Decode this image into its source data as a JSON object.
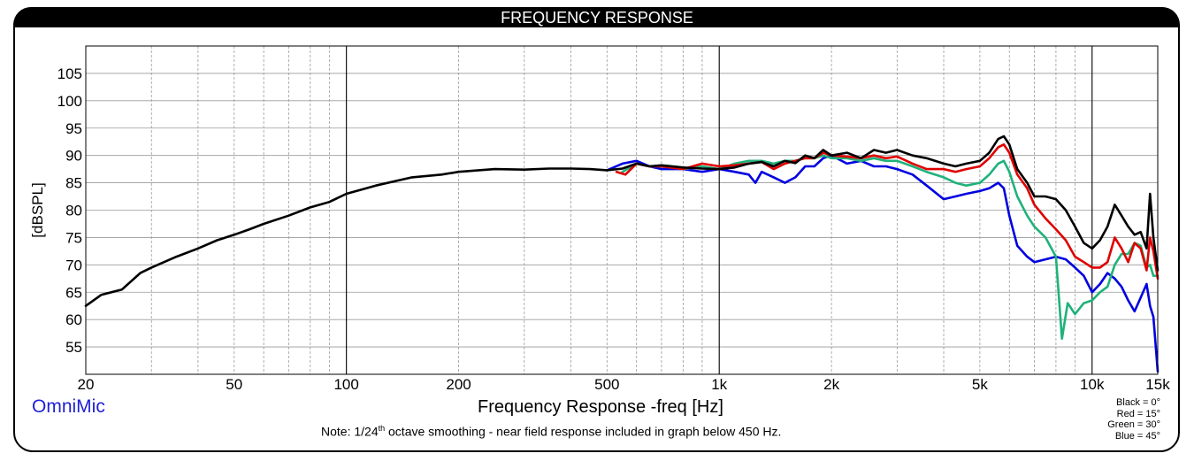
{
  "title": "FREQUENCY RESPONSE",
  "brand": "OmniMic",
  "note": {
    "prefix": "Note: 1/24",
    "sup": "th",
    "suffix": " octave smoothing - near field response included in graph below 450 Hz."
  },
  "legend": [
    "Black = 0°",
    "Red = 15°",
    "Green = 30°",
    "Blue = 45°"
  ],
  "chart_data": {
    "type": "line",
    "xlabel": "Frequency Response -freq [Hz]",
    "ylabel": "[dBSPL]",
    "xscale": "log",
    "xlim": [
      20,
      15000
    ],
    "ylim": [
      50,
      110
    ],
    "grid": true,
    "x_ticks": [
      20,
      50,
      100,
      200,
      500,
      1000,
      2000,
      5000,
      10000,
      15000
    ],
    "x_tick_labels": [
      "20",
      "50",
      "100",
      "200",
      "500",
      "1k",
      "2k",
      "5k",
      "10k",
      "15k"
    ],
    "y_ticks": [
      55,
      60,
      65,
      70,
      75,
      80,
      85,
      90,
      95,
      100,
      105
    ],
    "y_tick_labels": [
      "55",
      "60",
      "65",
      "70",
      "75",
      "80",
      "85",
      "90",
      "95",
      "100",
      "105"
    ],
    "series": [
      {
        "name": "Black = 0°",
        "color": "#000000",
        "x": [
          20,
          22,
          25,
          28,
          30,
          35,
          40,
          45,
          50,
          55,
          60,
          70,
          80,
          90,
          100,
          120,
          150,
          180,
          200,
          250,
          300,
          350,
          400,
          450,
          500,
          550,
          600,
          650,
          700,
          800,
          900,
          1000,
          1100,
          1200,
          1300,
          1400,
          1500,
          1600,
          1700,
          1800,
          1900,
          2000,
          2200,
          2400,
          2600,
          2800,
          3000,
          3300,
          3600,
          4000,
          4300,
          4600,
          5000,
          5300,
          5600,
          5800,
          6000,
          6300,
          6700,
          7000,
          7500,
          8000,
          8500,
          9000,
          9500,
          10000,
          10500,
          11000,
          11500,
          12000,
          12500,
          13000,
          13500,
          14000,
          14300,
          14600,
          15000
        ],
        "y": [
          62.5,
          64.5,
          65.5,
          68.5,
          69.5,
          71.5,
          73.0,
          74.5,
          75.5,
          76.5,
          77.5,
          79.0,
          80.5,
          81.5,
          83.0,
          84.5,
          86.0,
          86.5,
          87.0,
          87.5,
          87.4,
          87.6,
          87.6,
          87.5,
          87.3,
          87.6,
          88.5,
          88.0,
          88.2,
          87.8,
          87.6,
          87.5,
          87.8,
          88.5,
          88.8,
          88.0,
          89.0,
          88.6,
          90.0,
          89.5,
          91.0,
          90.0,
          90.5,
          89.5,
          91.0,
          90.5,
          91.0,
          90.0,
          89.5,
          88.5,
          88.0,
          88.5,
          89.0,
          90.5,
          93.0,
          93.5,
          92.0,
          87.5,
          85.0,
          82.5,
          82.5,
          82.0,
          80.0,
          77.0,
          74.0,
          73.0,
          74.5,
          77.0,
          81.0,
          79.0,
          77.0,
          75.5,
          76.0,
          73.0,
          83.0,
          75.0,
          69.0
        ]
      },
      {
        "name": "Red = 15°",
        "color": "#e00000",
        "x": [
          530,
          560,
          600,
          650,
          700,
          800,
          900,
          1000,
          1100,
          1200,
          1300,
          1400,
          1500,
          1600,
          1700,
          1800,
          1900,
          2000,
          2200,
          2400,
          2600,
          2800,
          3000,
          3300,
          3600,
          4000,
          4300,
          4600,
          5000,
          5300,
          5600,
          5800,
          6000,
          6300,
          6700,
          7000,
          7500,
          8000,
          8500,
          9000,
          9500,
          10000,
          10500,
          11000,
          11500,
          12000,
          12500,
          13000,
          13500,
          14000,
          14300,
          14600,
          15000
        ],
        "y": [
          87.0,
          86.5,
          88.5,
          88.0,
          88.0,
          87.5,
          88.5,
          88.0,
          88.2,
          88.5,
          88.8,
          87.5,
          88.5,
          89.0,
          89.5,
          89.5,
          90.5,
          90.0,
          89.8,
          89.5,
          90.0,
          89.5,
          89.8,
          88.5,
          87.5,
          87.5,
          87.0,
          87.5,
          88.0,
          89.5,
          91.5,
          92.0,
          90.5,
          86.5,
          84.0,
          81.0,
          78.5,
          76.5,
          74.5,
          71.5,
          70.5,
          69.5,
          69.5,
          70.5,
          75.0,
          73.0,
          70.5,
          74.0,
          73.0,
          69.0,
          75.0,
          72.5,
          67.5
        ]
      },
      {
        "name": "Green = 30°",
        "color": "#1fb27a",
        "x": [
          550,
          600,
          650,
          700,
          800,
          900,
          1000,
          1100,
          1200,
          1300,
          1400,
          1500,
          1600,
          1700,
          1800,
          1900,
          2000,
          2200,
          2400,
          2600,
          2800,
          3000,
          3300,
          3600,
          4000,
          4300,
          4600,
          5000,
          5300,
          5600,
          5800,
          6000,
          6300,
          6700,
          7000,
          7500,
          8000,
          8300,
          8600,
          9000,
          9500,
          10000,
          10500,
          11000,
          11500,
          12000,
          12500,
          13000,
          13500,
          14000,
          14300,
          14600,
          15000
        ],
        "y": [
          87.0,
          88.5,
          88.0,
          88.0,
          87.5,
          88.0,
          87.5,
          88.5,
          89.0,
          89.0,
          88.5,
          89.0,
          89.0,
          89.5,
          89.5,
          90.0,
          89.5,
          89.5,
          89.0,
          89.5,
          89.0,
          89.0,
          88.0,
          87.0,
          86.0,
          85.0,
          84.5,
          85.0,
          86.5,
          88.5,
          89.0,
          87.0,
          82.5,
          79.0,
          77.0,
          75.0,
          71.5,
          56.5,
          63.0,
          61.0,
          63.0,
          63.5,
          65.0,
          66.0,
          70.0,
          72.0,
          72.0,
          74.0,
          73.5,
          69.5,
          70.0,
          68.0,
          68.0
        ]
      },
      {
        "name": "Blue = 45°",
        "color": "#0000e0",
        "x": [
          500,
          550,
          600,
          650,
          700,
          800,
          900,
          1000,
          1100,
          1200,
          1250,
          1300,
          1400,
          1500,
          1600,
          1700,
          1800,
          1900,
          2000,
          2200,
          2400,
          2600,
          2800,
          3000,
          3300,
          3600,
          4000,
          4300,
          4600,
          5000,
          5300,
          5600,
          5800,
          6000,
          6300,
          6700,
          7000,
          7500,
          8000,
          8500,
          9000,
          9500,
          10000,
          10500,
          11000,
          11500,
          12000,
          12500,
          13000,
          13500,
          14000,
          14300,
          14600,
          15000
        ],
        "y": [
          87.3,
          88.5,
          89.0,
          88.0,
          87.5,
          87.5,
          87.0,
          87.5,
          87.0,
          86.5,
          85.0,
          87.0,
          86.0,
          85.0,
          86.0,
          88.0,
          88.0,
          89.5,
          90.0,
          88.5,
          89.0,
          88.0,
          88.0,
          87.5,
          86.5,
          84.5,
          82.0,
          82.5,
          83.0,
          83.5,
          84.0,
          85.0,
          84.0,
          79.0,
          73.5,
          71.5,
          70.5,
          71.0,
          71.5,
          71.0,
          69.5,
          68.0,
          65.0,
          66.5,
          68.5,
          67.5,
          66.0,
          63.5,
          61.5,
          64.0,
          66.5,
          62.5,
          60.5,
          50.5
        ]
      }
    ]
  }
}
